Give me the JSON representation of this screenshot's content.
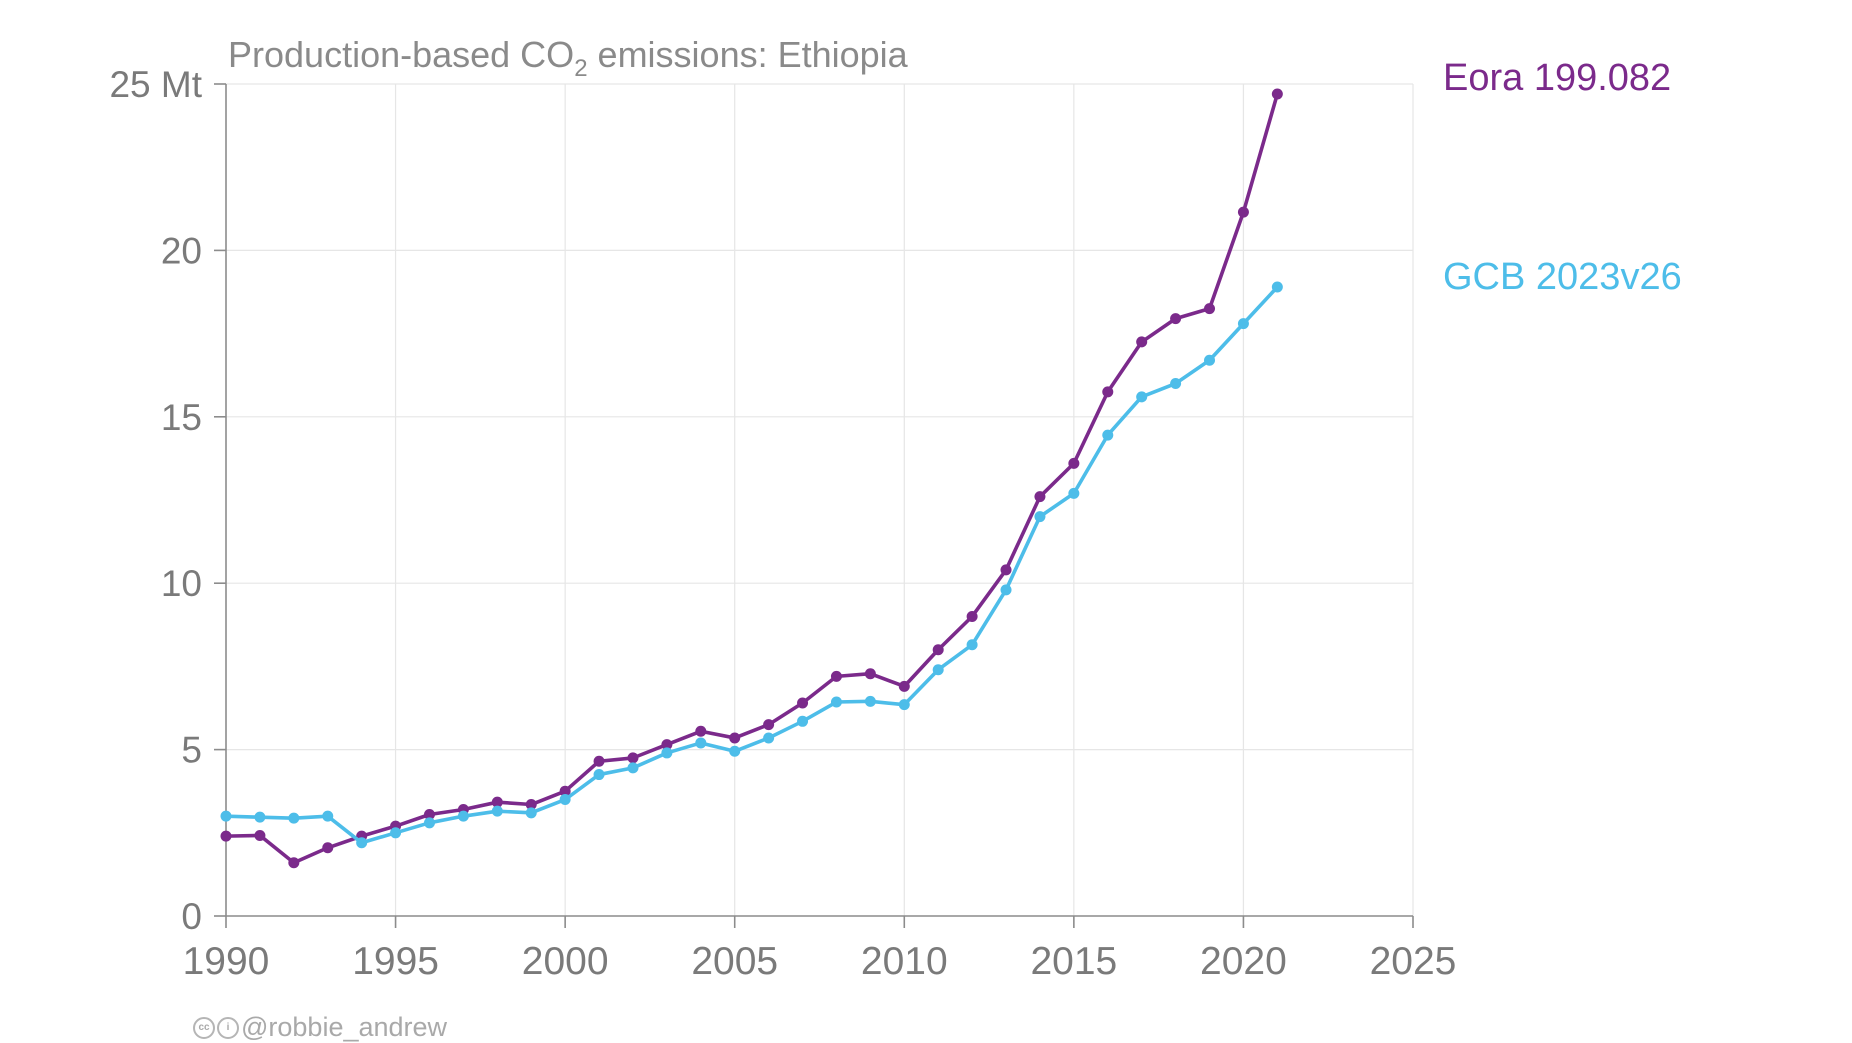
{
  "chart_data": {
    "type": "line",
    "title": "Production-based CO",
    "title_subscript": "2",
    "title_suffix": " emissions: Ethiopia",
    "xlabel": "",
    "ylabel": "",
    "xlim": [
      1990,
      2025
    ],
    "ylim": [
      0,
      25
    ],
    "x_ticks": [
      1990,
      1995,
      2000,
      2005,
      2010,
      2015,
      2020,
      2025
    ],
    "x_tick_labels": [
      "1990",
      "1995",
      "2000",
      "2005",
      "2010",
      "2015",
      "2020",
      "2025"
    ],
    "y_ticks": [
      0,
      5,
      10,
      15,
      20,
      25
    ],
    "y_tick_labels": [
      "0",
      "5",
      "10",
      "15",
      "20",
      "25 Mt"
    ],
    "grid": true,
    "legend_position": "right, labels next to series",
    "series": [
      {
        "name": "Eora 199.082",
        "color": "#7b2a8b",
        "x": [
          1990,
          1991,
          1992,
          1993,
          1994,
          1995,
          1996,
          1997,
          1998,
          1999,
          2000,
          2001,
          2002,
          2003,
          2004,
          2005,
          2006,
          2007,
          2008,
          2009,
          2010,
          2011,
          2012,
          2013,
          2014,
          2015,
          2016,
          2017,
          2018,
          2019,
          2020,
          2021
        ],
        "values": [
          2.4,
          2.42,
          1.6,
          2.05,
          2.4,
          2.7,
          3.05,
          3.2,
          3.42,
          3.35,
          3.75,
          4.65,
          4.75,
          5.15,
          5.55,
          5.35,
          5.75,
          6.4,
          7.2,
          7.28,
          6.9,
          8.0,
          9.0,
          10.4,
          12.6,
          13.6,
          15.75,
          17.25,
          17.95,
          18.25,
          21.15,
          24.7
        ]
      },
      {
        "name": "GCB 2023v26",
        "color": "#4dbde9",
        "x": [
          1990,
          1991,
          1992,
          1993,
          1994,
          1995,
          1996,
          1997,
          1998,
          1999,
          2000,
          2001,
          2002,
          2003,
          2004,
          2005,
          2006,
          2007,
          2008,
          2009,
          2010,
          2011,
          2012,
          2013,
          2014,
          2015,
          2016,
          2017,
          2018,
          2019,
          2020,
          2021
        ],
        "values": [
          3.0,
          2.97,
          2.94,
          3.0,
          2.2,
          2.5,
          2.8,
          3.0,
          3.15,
          3.1,
          3.5,
          4.25,
          4.45,
          4.9,
          5.2,
          4.95,
          5.35,
          5.85,
          6.43,
          6.45,
          6.35,
          7.4,
          8.15,
          9.8,
          12.0,
          12.7,
          14.45,
          15.6,
          16.0,
          16.7,
          17.8,
          18.9
        ]
      }
    ]
  },
  "footer": {
    "cc_icon": "cc",
    "by_icon": "i",
    "credit": "@robbie_andrew"
  }
}
